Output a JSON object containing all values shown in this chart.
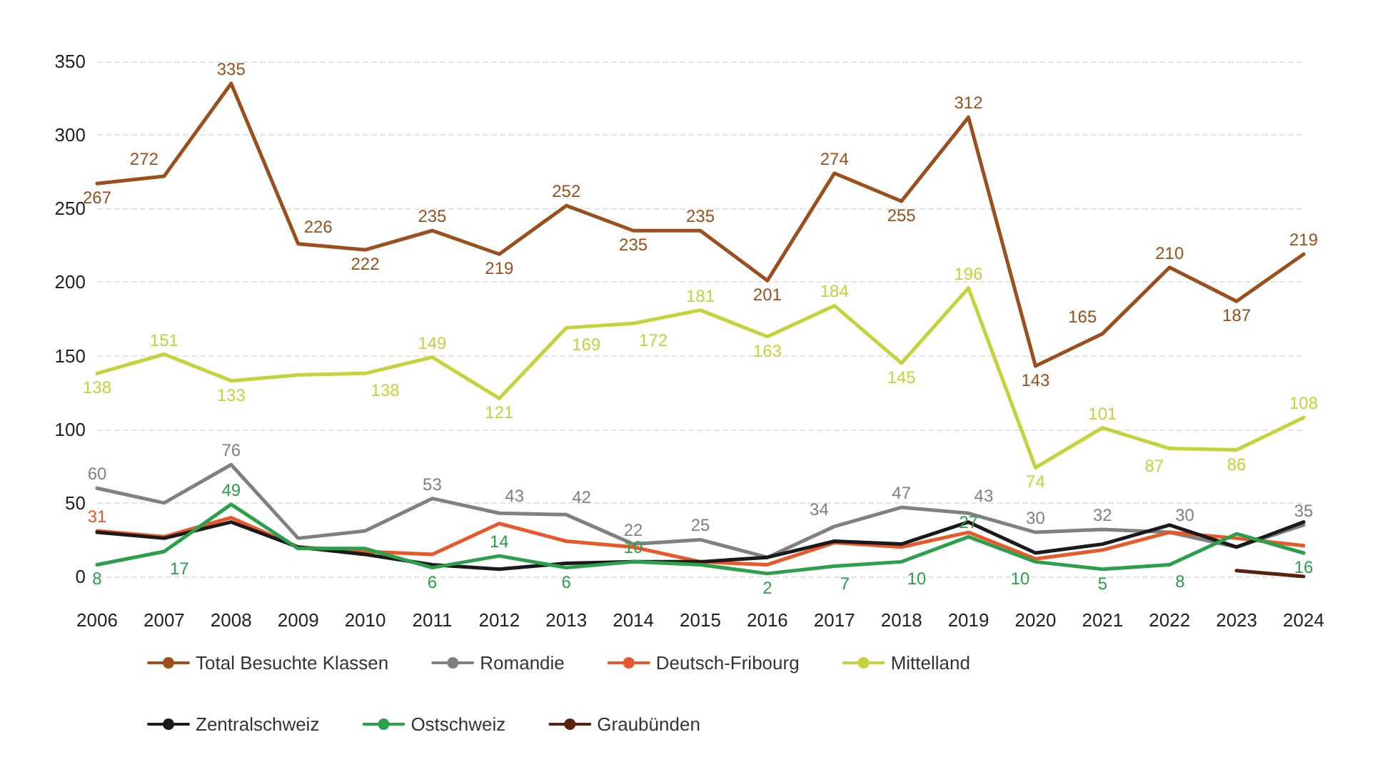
{
  "chart_data": {
    "type": "line",
    "categories": [
      "2006",
      "2007",
      "2008",
      "2009",
      "2010",
      "2011",
      "2012",
      "2013",
      "2014",
      "2015",
      "2016",
      "2017",
      "2018",
      "2019",
      "2020",
      "2021",
      "2022",
      "2023",
      "2024"
    ],
    "series": [
      {
        "name": "Total Besuchte Klassen",
        "color": "#9a4f1c",
        "values": [
          267,
          272,
          335,
          226,
          222,
          235,
          219,
          252,
          235,
          235,
          201,
          274,
          255,
          312,
          143,
          165,
          210,
          187,
          219
        ],
        "value_labels": [
          "267",
          "272",
          "335",
          "226",
          "222",
          "235",
          "219",
          "252",
          "235",
          "235",
          "201",
          "274",
          "255",
          "312",
          "143",
          "165",
          "210",
          "187",
          "219"
        ]
      },
      {
        "name": "Romandie",
        "color": "#808080",
        "values": [
          60,
          50,
          76,
          26,
          31,
          53,
          43,
          42,
          22,
          25,
          13,
          34,
          47,
          43,
          30,
          32,
          30,
          20,
          35
        ],
        "value_labels": [
          "60",
          null,
          "76",
          null,
          null,
          "53",
          "43",
          "42",
          "22",
          "25",
          null,
          "34",
          "47",
          "43",
          "30",
          "32",
          "30",
          null,
          "35"
        ]
      },
      {
        "name": "Deutsch-Fribourg",
        "color": "#e8582a",
        "values": [
          31,
          27,
          40,
          20,
          17,
          15,
          36,
          24,
          20,
          10,
          8,
          23,
          20,
          30,
          12,
          18,
          30,
          26,
          21
        ],
        "value_labels": [
          "31",
          null,
          null,
          null,
          null,
          null,
          null,
          null,
          null,
          null,
          null,
          null,
          null,
          null,
          null,
          null,
          null,
          null,
          null
        ]
      },
      {
        "name": "Mittelland",
        "color": "#c3d43a",
        "values": [
          138,
          151,
          133,
          137,
          138,
          149,
          121,
          169,
          172,
          181,
          163,
          184,
          145,
          196,
          74,
          101,
          87,
          86,
          108
        ],
        "value_labels": [
          "138",
          "151",
          "133",
          null,
          "138",
          "149",
          "121",
          "169",
          "172",
          "181",
          "163",
          "184",
          "145",
          "196",
          "74",
          "101",
          "87",
          "86",
          "108"
        ]
      },
      {
        "name": "Zentralschweiz",
        "color": "#1a1a1a",
        "values": [
          30,
          26,
          37,
          20,
          15,
          8,
          5,
          9,
          10,
          10,
          13,
          24,
          22,
          37,
          16,
          22,
          35,
          20,
          37
        ]
      },
      {
        "name": "Ostschweiz",
        "color": "#2aa04a",
        "values": [
          8,
          17,
          49,
          19,
          19,
          6,
          14,
          6,
          10,
          8,
          2,
          7,
          10,
          27,
          10,
          5,
          8,
          29,
          16
        ],
        "value_labels": [
          "8",
          "17",
          "49",
          null,
          null,
          "6",
          "14",
          "6",
          "10",
          null,
          "2",
          "7",
          "10",
          "27",
          "10",
          "5",
          "8",
          null,
          "16"
        ]
      },
      {
        "name": "Graubünden",
        "color": "#5a2010",
        "values": [
          null,
          null,
          null,
          null,
          null,
          null,
          null,
          null,
          null,
          null,
          null,
          null,
          null,
          null,
          null,
          null,
          null,
          4,
          0
        ]
      }
    ],
    "ylim": [
      0,
      350
    ],
    "yticks": [
      0,
      50,
      100,
      150,
      200,
      250,
      300,
      350
    ],
    "grid": "y",
    "legend": "bottom",
    "marker": "none",
    "line_style": "solid"
  }
}
